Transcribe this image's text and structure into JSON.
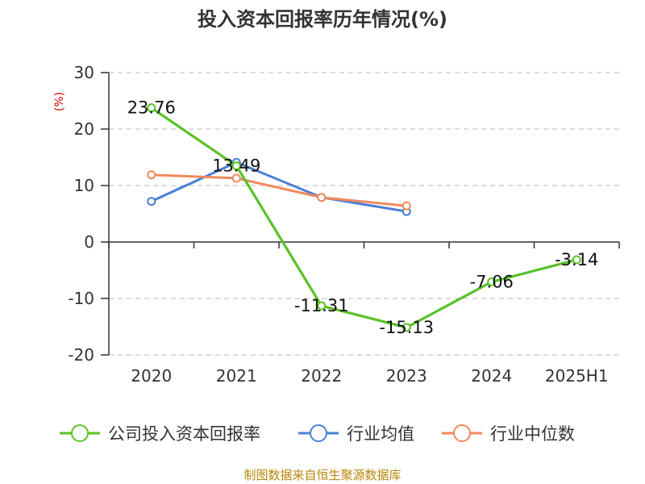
{
  "chart_data": {
    "type": "line",
    "title": "投入资本回报率历年情况(%)",
    "unit_label": "(%)",
    "categories": [
      "2020",
      "2021",
      "2022",
      "2023",
      "2024",
      "2025H1"
    ],
    "ylim": [
      -20,
      30
    ],
    "yticks": [
      30,
      20,
      10,
      0,
      -10,
      -20
    ],
    "grid": true,
    "legend_position": "bottom",
    "series": [
      {
        "name": "公司投入资本回报率",
        "color": "#5ac229",
        "values": [
          23.76,
          13.49,
          -11.31,
          -15.13,
          -7.06,
          -3.14
        ],
        "labels": [
          "23.76",
          "13.49",
          "-11.31",
          "-15.13",
          "-7.06",
          "-3.14"
        ]
      },
      {
        "name": "行业均值",
        "color": "#4a7fd6",
        "values": [
          7.2,
          14.1,
          7.9,
          5.4,
          null,
          null
        ]
      },
      {
        "name": "行业中位数",
        "color": "#f08a5d",
        "values": [
          11.9,
          11.3,
          7.9,
          6.4,
          null,
          null
        ]
      }
    ],
    "source": "制图数据来自恒生聚源数据库"
  }
}
